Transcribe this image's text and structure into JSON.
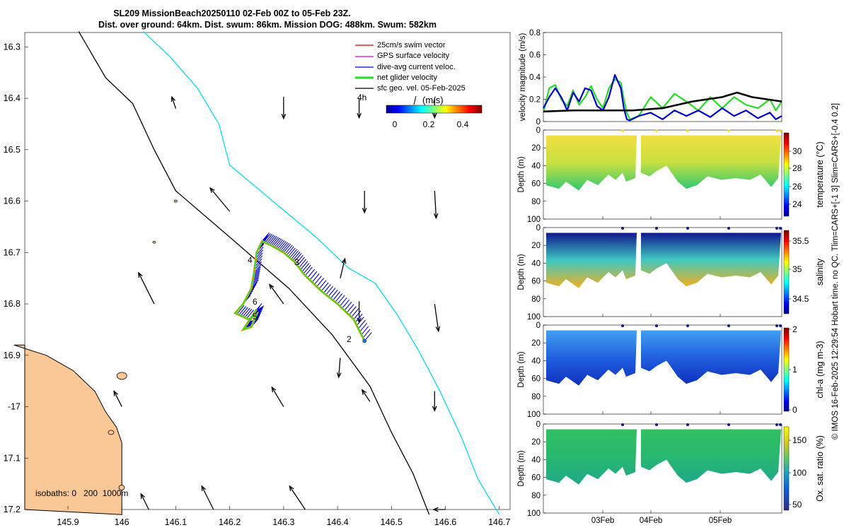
{
  "title": {
    "line1": "SL209 MissionBeach20250110 02-Feb 00Z to 05-Feb 23Z.",
    "line2": "Dist. over ground: 64km. Dist. swum: 86km. Mission DOG: 488km. Swum: 582km"
  },
  "colors": {
    "land": "#fac896",
    "isobath200": "#000000",
    "isobath1000": "#00e0e0",
    "swim": "#e00000",
    "gps": "#e000e0",
    "diveavg": "#0000dd",
    "net": "#22dd22",
    "sfc": "#000000"
  },
  "map": {
    "lon_ticks": [
      "145.9",
      "146",
      "146.1",
      "146.2",
      "146.3",
      "146.4",
      "146.5",
      "146.6",
      "146.7"
    ],
    "lat_ticks": [
      "16.3",
      "16.4",
      "16.5",
      "16.6",
      "16.7",
      "16.8",
      "16.9",
      "-17",
      "17.1",
      "17.2"
    ],
    "legend": [
      {
        "label": "25cm/s swim vector",
        "color_key": "swim"
      },
      {
        "label": "GPS surface velocity",
        "color_key": "gps"
      },
      {
        "label": "dive-avg current veloc.",
        "color_key": "diveavg"
      },
      {
        "label": "net glider velocity",
        "color_key": "net"
      },
      {
        "label": "sfc geo. vel. 05-Feb-2025",
        "color_key": "sfc"
      }
    ],
    "scale_text": "4h",
    "colorbar_label": "(m/s)",
    "colorbar_ticks": [
      "0",
      "0.2",
      "0.4"
    ],
    "track_labels": [
      "2",
      "3",
      "4",
      "5",
      "6"
    ],
    "isobath_text": "isobaths: 0   200  1000m",
    "track": [
      [
        146.45,
        16.872
      ],
      [
        146.43,
        16.83
      ],
      [
        146.4,
        16.8
      ],
      [
        146.37,
        16.775
      ],
      [
        146.34,
        16.745
      ],
      [
        146.32,
        16.718
      ],
      [
        146.3,
        16.7
      ],
      [
        146.28,
        16.688
      ],
      [
        146.26,
        16.678
      ],
      [
        146.25,
        16.7
      ],
      [
        146.245,
        16.74
      ],
      [
        146.24,
        16.77
      ],
      [
        146.225,
        16.8
      ],
      [
        146.21,
        16.818
      ],
      [
        146.235,
        16.83
      ],
      [
        146.25,
        16.82
      ],
      [
        146.24,
        16.845
      ],
      [
        146.225,
        16.85
      ],
      [
        146.25,
        16.81
      ]
    ],
    "isobath200": [
      [
        145.92,
        16.27
      ],
      [
        145.97,
        16.36
      ],
      [
        146.02,
        16.41
      ],
      [
        146.06,
        16.5
      ],
      [
        146.1,
        16.58
      ],
      [
        146.2,
        16.67
      ],
      [
        146.31,
        16.77
      ],
      [
        146.39,
        16.86
      ],
      [
        146.46,
        16.96
      ],
      [
        146.5,
        17.05
      ],
      [
        146.54,
        17.13
      ],
      [
        146.57,
        17.21
      ]
    ],
    "isobath1000": [
      [
        146.04,
        16.27
      ],
      [
        146.09,
        16.32
      ],
      [
        146.14,
        16.38
      ],
      [
        146.18,
        16.45
      ],
      [
        146.2,
        16.53
      ],
      [
        146.28,
        16.6
      ],
      [
        146.36,
        16.67
      ],
      [
        146.42,
        16.73
      ],
      [
        146.47,
        16.76
      ],
      [
        146.51,
        16.82
      ],
      [
        146.55,
        16.89
      ],
      [
        146.59,
        16.97
      ],
      [
        146.63,
        17.06
      ],
      [
        146.66,
        17.14
      ],
      [
        146.7,
        17.21
      ]
    ],
    "coast": [
      [
        145.8,
        16.88
      ],
      [
        145.86,
        16.9
      ],
      [
        145.91,
        16.93
      ],
      [
        145.95,
        16.97
      ],
      [
        145.97,
        17.01
      ],
      [
        145.99,
        17.04
      ],
      [
        146.0,
        17.07
      ],
      [
        146.0,
        17.1
      ],
      [
        146.0,
        17.14
      ],
      [
        146.0,
        17.18
      ],
      [
        146.0,
        17.21
      ]
    ],
    "sfc_vectors": [
      {
        "lon": 146.405,
        "lat": 16.75,
        "u": 0.06,
        "v": 0.25
      },
      {
        "lon": 146.405,
        "lat": 16.905,
        "u": -0.02,
        "v": -0.25
      },
      {
        "lon": 146.44,
        "lat": 16.795,
        "u": 0.0,
        "v": -0.27
      },
      {
        "lon": 146.3,
        "lat": 16.397,
        "u": 0.0,
        "v": -0.28
      },
      {
        "lon": 146.44,
        "lat": 16.4,
        "u": 0.0,
        "v": -0.25
      },
      {
        "lon": 146.58,
        "lat": 16.4,
        "u": 0.0,
        "v": -0.25
      },
      {
        "lon": 146.45,
        "lat": 16.58,
        "u": 0.0,
        "v": -0.28
      },
      {
        "lon": 146.58,
        "lat": 16.58,
        "u": 0.02,
        "v": -0.35
      },
      {
        "lon": 146.58,
        "lat": 16.8,
        "u": 0.05,
        "v": -0.35
      },
      {
        "lon": 146.58,
        "lat": 16.97,
        "u": 0.0,
        "v": -0.25
      },
      {
        "lon": 146.3,
        "lat": 16.8,
        "u": -0.18,
        "v": 0.25
      },
      {
        "lon": 146.3,
        "lat": 17.0,
        "u": -0.15,
        "v": 0.25
      },
      {
        "lon": 146.46,
        "lat": 16.99,
        "u": -0.1,
        "v": 0.15
      },
      {
        "lon": 146.2,
        "lat": 16.62,
        "u": -0.25,
        "v": 0.3
      },
      {
        "lon": 146.06,
        "lat": 16.8,
        "u": -0.2,
        "v": 0.4
      },
      {
        "lon": 146.0,
        "lat": 17.0,
        "u": -0.1,
        "v": 0.2
      },
      {
        "lon": 146.1,
        "lat": 16.42,
        "u": -0.05,
        "v": 0.15
      },
      {
        "lon": 146.17,
        "lat": 17.2,
        "u": -0.15,
        "v": 0.3
      },
      {
        "lon": 146.34,
        "lat": 17.2,
        "u": -0.2,
        "v": 0.3
      },
      {
        "lon": 146.05,
        "lat": 17.2,
        "u": -0.1,
        "v": 0.2
      },
      {
        "lon": 146.6,
        "lat": 17.2,
        "u": -0.15,
        "v": 0.0
      }
    ]
  },
  "right_panels": {
    "date_ticks": [
      "03Feb",
      "04Feb",
      "05Feb"
    ],
    "depth_label": "Depth (m)",
    "depth_ticks": [
      "0",
      "20",
      "40",
      "60",
      "80",
      "100"
    ],
    "temperature": {
      "label": "temperature (°C)",
      "cbar_ticks": [
        "30",
        "28",
        "26",
        "24"
      ]
    },
    "salinity": {
      "label": "salinity",
      "cbar_ticks": [
        "35.5",
        "35",
        "34.5"
      ]
    },
    "chla": {
      "label": "chl-a (mg m-3)",
      "cbar_ticks": [
        "2",
        "1",
        "0"
      ]
    },
    "oxygen": {
      "label": "Ox. sat. ratio (%)",
      "cbar_ticks": [
        "150",
        "100",
        "50"
      ]
    }
  },
  "side_note": "© IMOS 16-Feb-2025 12:29:54 Hobart time. no QC. Tlim=CARS+[-1 3] Slim=CARS+[-0.4 0.2]",
  "chart_data": [
    {
      "type": "line",
      "title": "",
      "ylabel": "velocity magnitude (m/s)",
      "xlabel": "",
      "ylim": [
        0,
        0.8
      ],
      "yticks": [
        "0",
        "0.2",
        "0.4",
        "0.6",
        "0.8"
      ],
      "x_days": [
        0,
        0.5,
        1,
        1.5,
        2,
        2.5,
        3,
        3.5,
        4
      ],
      "x_tick_labels": [
        "03Feb",
        "04Feb",
        "05Feb"
      ],
      "series": [
        {
          "name": "net glider velocity",
          "color_key": "net",
          "x": [
            0,
            0.1,
            0.2,
            0.3,
            0.4,
            0.5,
            0.6,
            0.7,
            0.8,
            0.9,
            1.0,
            1.1,
            1.2,
            1.3,
            1.35,
            1.4,
            1.45,
            1.6,
            1.8,
            2.0,
            2.2,
            2.4,
            2.6,
            2.8,
            3.0,
            3.2,
            3.4,
            3.6,
            3.8,
            3.9,
            4.0
          ],
          "y": [
            0.08,
            0.3,
            0.33,
            0.2,
            0.14,
            0.28,
            0.15,
            0.22,
            0.32,
            0.2,
            0.12,
            0.3,
            0.38,
            0.35,
            0.2,
            0.08,
            0.02,
            0.05,
            0.22,
            0.12,
            0.25,
            0.18,
            0.1,
            0.22,
            0.12,
            0.22,
            0.15,
            0.12,
            0.2,
            0.1,
            0.18
          ]
        },
        {
          "name": "dive-avg current veloc.",
          "color_key": "diveavg",
          "x": [
            0,
            0.1,
            0.2,
            0.3,
            0.4,
            0.5,
            0.6,
            0.7,
            0.8,
            0.9,
            1.0,
            1.1,
            1.2,
            1.3,
            1.35,
            1.4,
            1.45,
            1.6,
            1.8,
            2.0,
            2.2,
            2.4,
            2.6,
            2.8,
            3.0,
            3.2,
            3.4,
            3.6,
            3.8,
            3.9,
            4.0
          ],
          "y": [
            0.12,
            0.22,
            0.3,
            0.22,
            0.1,
            0.26,
            0.18,
            0.3,
            0.28,
            0.14,
            0.1,
            0.22,
            0.42,
            0.3,
            0.12,
            0.02,
            0.01,
            0.05,
            0.08,
            0.02,
            0.1,
            0.05,
            0.1,
            0.04,
            0.12,
            0.05,
            0.1,
            0.03,
            0.08,
            0.02,
            0.05
          ]
        },
        {
          "name": "sfc geo. vel.",
          "color_key": "sfc",
          "x": [
            0,
            0.5,
            1.0,
            1.5,
            2.0,
            2.5,
            3.0,
            3.25,
            3.5,
            4.0
          ],
          "y": [
            0.09,
            0.1,
            0.1,
            0.1,
            0.12,
            0.18,
            0.22,
            0.26,
            0.22,
            0.18
          ]
        }
      ]
    }
  ]
}
